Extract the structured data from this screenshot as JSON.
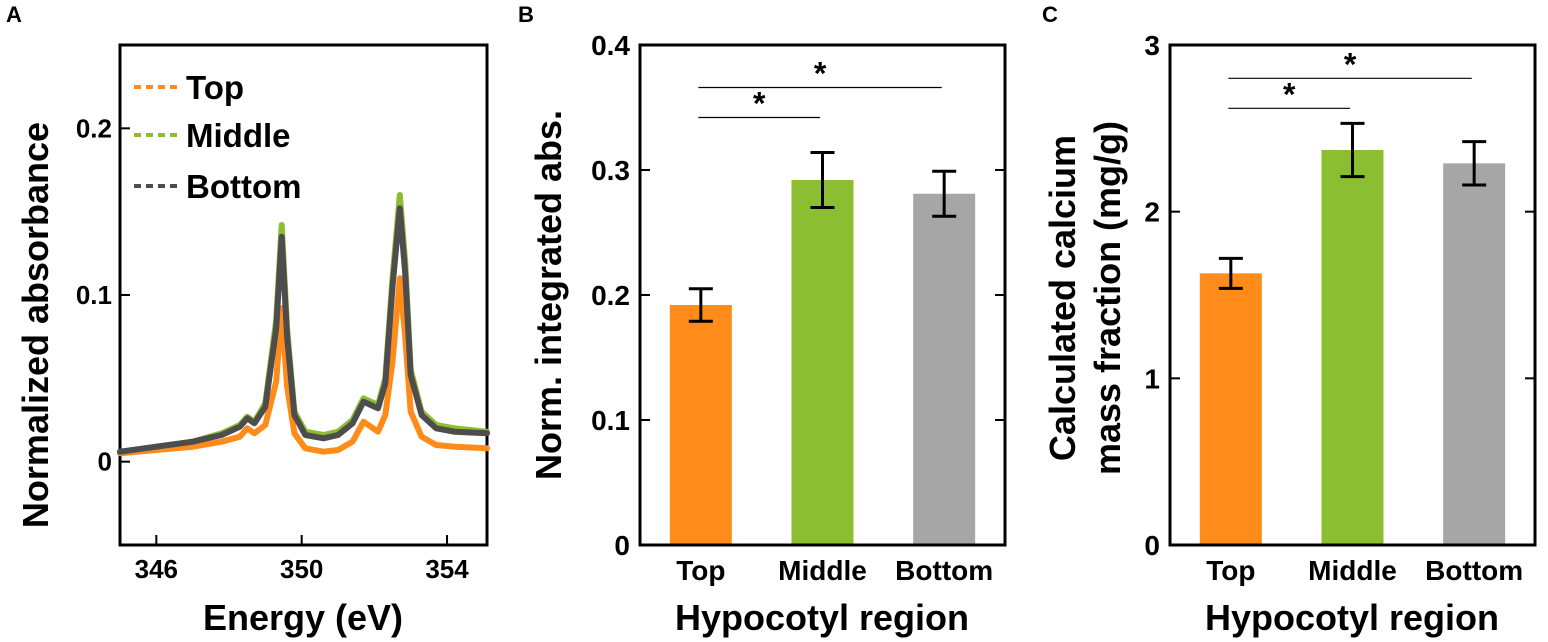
{
  "chart_data": [
    {
      "panel": "A",
      "type": "line",
      "title": "",
      "xlabel": "Energy (eV)",
      "ylabel": "Normalized absorbance",
      "xlim": [
        345,
        355.1
      ],
      "ylim": [
        -0.05,
        0.25
      ],
      "xticks": [
        346,
        350,
        354
      ],
      "xtick_labels": [
        "346",
        "350",
        "354"
      ],
      "yticks": [
        0,
        0.1,
        0.2
      ],
      "ytick_labels": [
        "0",
        "0.1",
        "0.2"
      ],
      "legend_position": "top-left",
      "series": [
        {
          "name": "Top",
          "color": "#ff8c1a",
          "x": [
            345.0,
            346.0,
            347.0,
            347.8,
            348.3,
            348.5,
            348.7,
            349.0,
            349.3,
            349.45,
            349.6,
            349.8,
            350.1,
            350.6,
            351.0,
            351.4,
            351.7,
            351.9,
            352.1,
            352.3,
            352.5,
            352.7,
            352.85,
            353.0,
            353.3,
            353.7,
            354.2,
            355.1
          ],
          "y": [
            0.005,
            0.007,
            0.009,
            0.012,
            0.015,
            0.02,
            0.017,
            0.022,
            0.048,
            0.092,
            0.045,
            0.017,
            0.008,
            0.006,
            0.007,
            0.012,
            0.024,
            0.021,
            0.018,
            0.028,
            0.06,
            0.11,
            0.075,
            0.03,
            0.015,
            0.01,
            0.009,
            0.008
          ]
        },
        {
          "name": "Middle",
          "color": "#8cbe32",
          "x": [
            345.0,
            346.0,
            347.0,
            347.8,
            348.3,
            348.5,
            348.7,
            349.0,
            349.3,
            349.45,
            349.6,
            349.8,
            350.1,
            350.6,
            351.0,
            351.4,
            351.7,
            351.9,
            352.1,
            352.3,
            352.5,
            352.7,
            352.85,
            353.0,
            353.3,
            353.7,
            354.2,
            355.1
          ],
          "y": [
            0.006,
            0.009,
            0.012,
            0.017,
            0.022,
            0.027,
            0.024,
            0.035,
            0.085,
            0.142,
            0.08,
            0.03,
            0.018,
            0.016,
            0.018,
            0.025,
            0.038,
            0.036,
            0.034,
            0.05,
            0.11,
            0.16,
            0.12,
            0.055,
            0.03,
            0.022,
            0.02,
            0.018
          ]
        },
        {
          "name": "Bottom",
          "color": "#4d4d4d",
          "x": [
            345.0,
            346.0,
            347.0,
            347.8,
            348.3,
            348.5,
            348.7,
            349.0,
            349.3,
            349.45,
            349.6,
            349.8,
            350.1,
            350.6,
            351.0,
            351.4,
            351.7,
            351.9,
            352.1,
            352.3,
            352.5,
            352.7,
            352.85,
            353.0,
            353.3,
            353.7,
            354.2,
            355.1
          ],
          "y": [
            0.006,
            0.009,
            0.012,
            0.016,
            0.021,
            0.026,
            0.023,
            0.033,
            0.08,
            0.135,
            0.075,
            0.028,
            0.016,
            0.014,
            0.016,
            0.023,
            0.036,
            0.034,
            0.032,
            0.047,
            0.105,
            0.152,
            0.113,
            0.052,
            0.028,
            0.02,
            0.018,
            0.017
          ]
        }
      ]
    },
    {
      "panel": "B",
      "type": "bar",
      "title": "",
      "xlabel": "Hypocotyl region",
      "ylabel": "Norm. integrated abs.",
      "categories": [
        "Top",
        "Middle",
        "Bottom"
      ],
      "values": [
        0.192,
        0.292,
        0.281
      ],
      "errors": [
        0.013,
        0.022,
        0.018
      ],
      "colors": [
        "#ff8c1a",
        "#8cbe32",
        "#a6a6a6"
      ],
      "ylim": [
        0,
        0.4
      ],
      "yticks": [
        0,
        0.1,
        0.2,
        0.3,
        0.4
      ],
      "ytick_labels": [
        "0",
        "0.1",
        "0.2",
        "0.3",
        "0.4"
      ],
      "significance": [
        {
          "from": 0,
          "to": 1,
          "level": 0.342,
          "label": "*"
        },
        {
          "from": 0,
          "to": 2,
          "level": 0.366,
          "label": "*"
        }
      ]
    },
    {
      "panel": "C",
      "type": "bar",
      "title": "",
      "xlabel": "Hypocotyl region",
      "ylabel_lines": [
        "Calculated calcium",
        "mass fraction (mg/g)"
      ],
      "categories": [
        "Top",
        "Middle",
        "Bottom"
      ],
      "values": [
        1.63,
        2.37,
        2.29
      ],
      "errors": [
        0.09,
        0.16,
        0.13
      ],
      "colors": [
        "#ff8c1a",
        "#8cbe32",
        "#a6a6a6"
      ],
      "ylim": [
        0,
        3
      ],
      "yticks": [
        0,
        1,
        2,
        3
      ],
      "ytick_labels": [
        "0",
        "1",
        "2",
        "3"
      ],
      "significance": [
        {
          "from": 0,
          "to": 1,
          "level": 2.62,
          "label": "*"
        },
        {
          "from": 0,
          "to": 2,
          "level": 2.8,
          "label": "*"
        }
      ]
    }
  ],
  "panel_labels": {
    "a": "A",
    "b": "B",
    "c": "C"
  }
}
